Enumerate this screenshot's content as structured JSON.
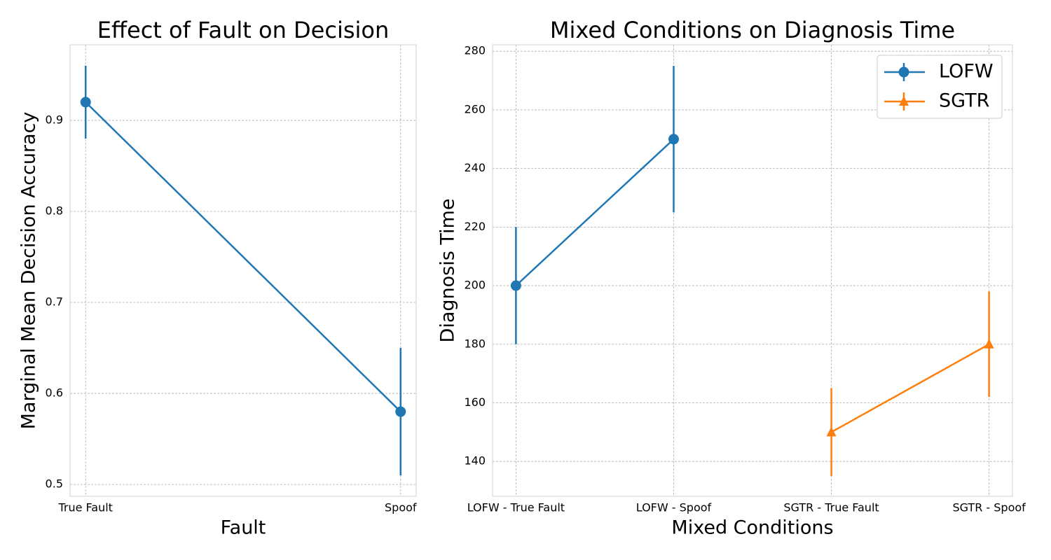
{
  "chart_data": [
    {
      "type": "line",
      "title": "Effect of Fault on Decision",
      "xlabel": "Fault",
      "ylabel": "Marginal Mean Decision Accuracy",
      "categories": [
        "True Fault",
        "Spoof"
      ],
      "series": [
        {
          "color": "#1f77b4",
          "marker": "circle",
          "values": [
            0.92,
            0.58
          ],
          "errors": [
            0.04,
            0.07
          ]
        }
      ],
      "ylim": [
        0.487,
        0.983
      ],
      "yticks": [
        0.5,
        0.6,
        0.7,
        0.8,
        0.9
      ],
      "grid": true
    },
    {
      "type": "line",
      "title": "Mixed Conditions on Diagnosis Time",
      "xlabel": "Mixed Conditions",
      "ylabel": "Diagnosis Time",
      "categories": [
        "LOFW - True Fault",
        "LOFW - Spoof",
        "SGTR - True Fault",
        "SGTR - Spoof"
      ],
      "series": [
        {
          "name": "LOFW",
          "color": "#1f77b4",
          "marker": "circle",
          "values": [
            200,
            250,
            null,
            null
          ],
          "errors": [
            20,
            25,
            null,
            null
          ]
        },
        {
          "name": "SGTR",
          "color": "#ff7f0e",
          "marker": "triangle",
          "values": [
            null,
            null,
            150,
            180
          ],
          "errors": [
            null,
            null,
            15,
            18
          ]
        }
      ],
      "ylim": [
        128.1,
        282.2
      ],
      "yticks": [
        140,
        160,
        180,
        200,
        220,
        240,
        260,
        280
      ],
      "grid": true,
      "legend": "upper right"
    }
  ]
}
